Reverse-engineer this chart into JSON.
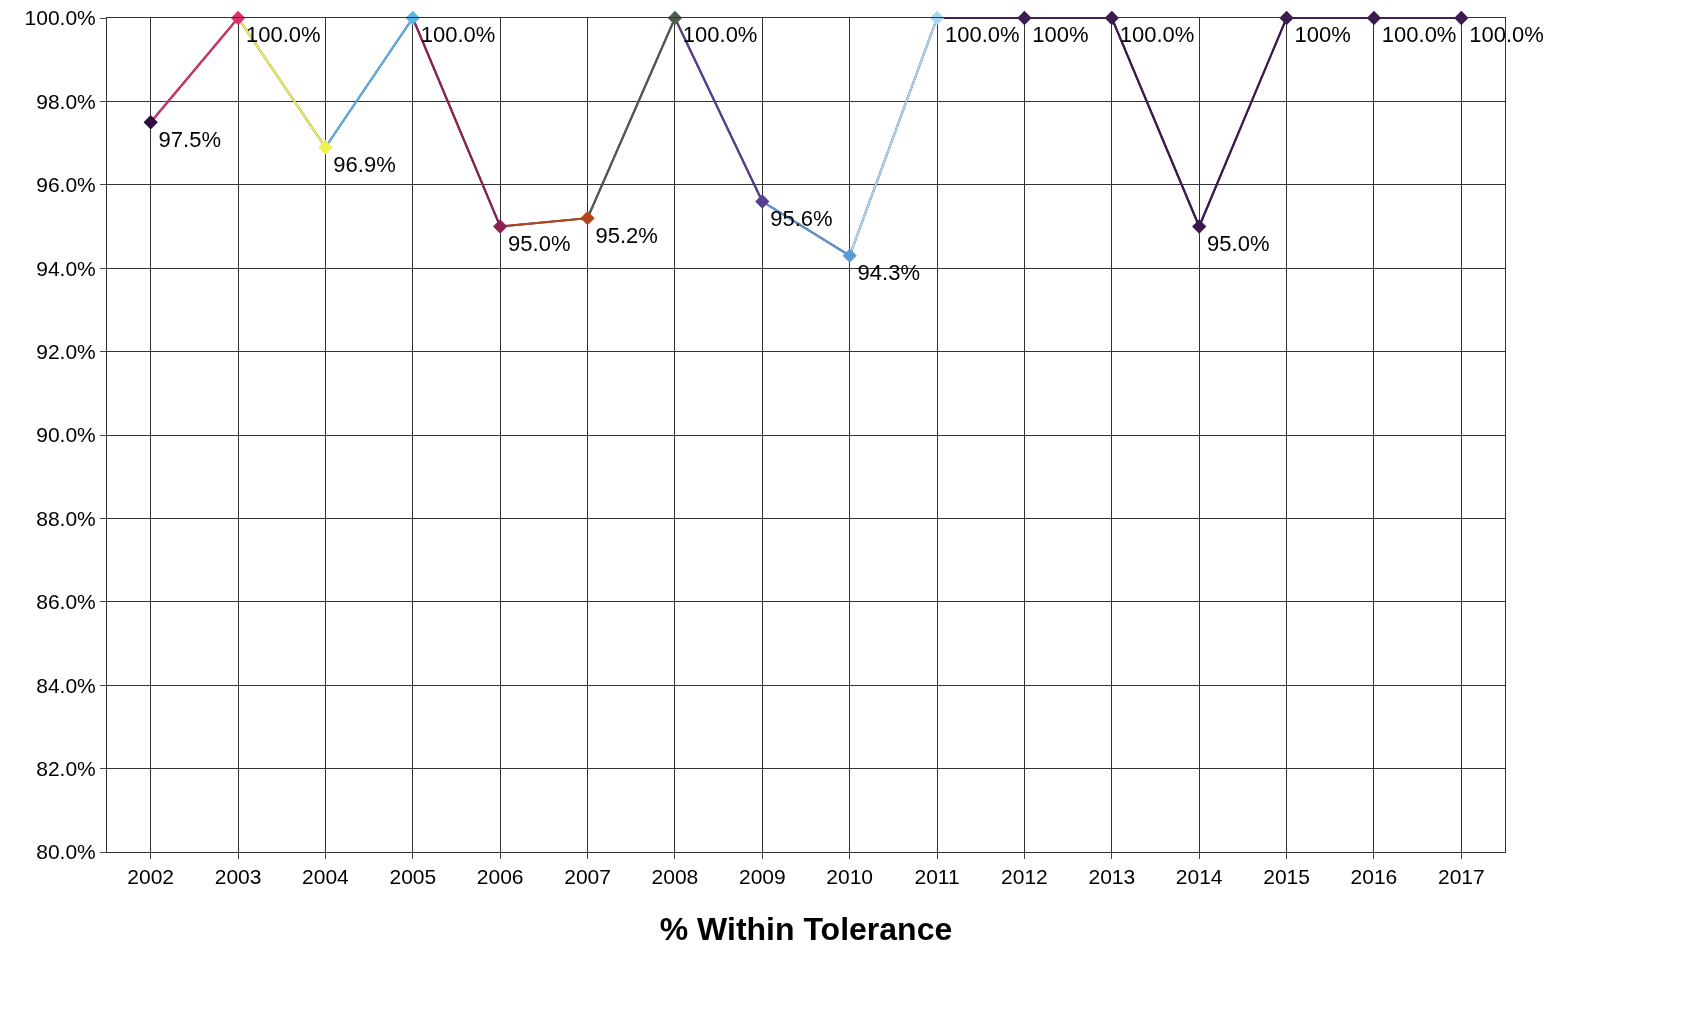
{
  "chart_data": {
    "type": "line",
    "xlabel": "% Within Tolerance",
    "categories": [
      "2002",
      "2003",
      "2004",
      "2005",
      "2006",
      "2007",
      "2008",
      "2009",
      "2010",
      "2011",
      "2012",
      "2013",
      "2014",
      "2015",
      "2016",
      "2017"
    ],
    "series": [
      {
        "color": "#3b1a4f",
        "values": [
          97.5,
          100,
          96.9,
          100,
          95.0,
          95.2,
          100,
          95.6,
          94.3,
          100,
          100,
          100,
          95.0,
          100,
          100,
          100
        ],
        "colors": [
          "#2e0f3f",
          "#d6336b",
          "#f0f050",
          "#5fb4e6",
          "#8b2252",
          "#b5451b",
          "#4d5e4f",
          "#5b3f8f",
          "#5b9bd5",
          "#a8d8f0",
          "#3b1a4f",
          "#3b1a4f",
          "#3b1a4f",
          "#3b1a4f",
          "#3b1a4f",
          "#3b1a4f"
        ],
        "value_labels": [
          "97.5%",
          "100.0%",
          "96.9%",
          "100.0%",
          "95.0%",
          "95.2%",
          "100.0%",
          "95.6%",
          "94.3%",
          "100.0%",
          "100%",
          "100.0%",
          "95.0%",
          "100%",
          "100.0%",
          "100.0%"
        ]
      }
    ],
    "ylim": [
      80,
      100
    ],
    "yticks": [
      {
        "value": 80,
        "label": "80.0%"
      },
      {
        "value": 82,
        "label": "82.0%"
      },
      {
        "value": 84,
        "label": "84.0%"
      },
      {
        "value": 86,
        "label": "86.0%"
      },
      {
        "value": 88,
        "label": "88.0%"
      },
      {
        "value": 90,
        "label": "90.0%"
      },
      {
        "value": 92,
        "label": "92.0%"
      },
      {
        "value": 94,
        "label": "94.0%"
      },
      {
        "value": 96,
        "label": "96.0%"
      },
      {
        "value": 98,
        "label": "98.0%"
      },
      {
        "value": 100,
        "label": "100.0%"
      }
    ],
    "grid": true,
    "marker": "diamond"
  }
}
